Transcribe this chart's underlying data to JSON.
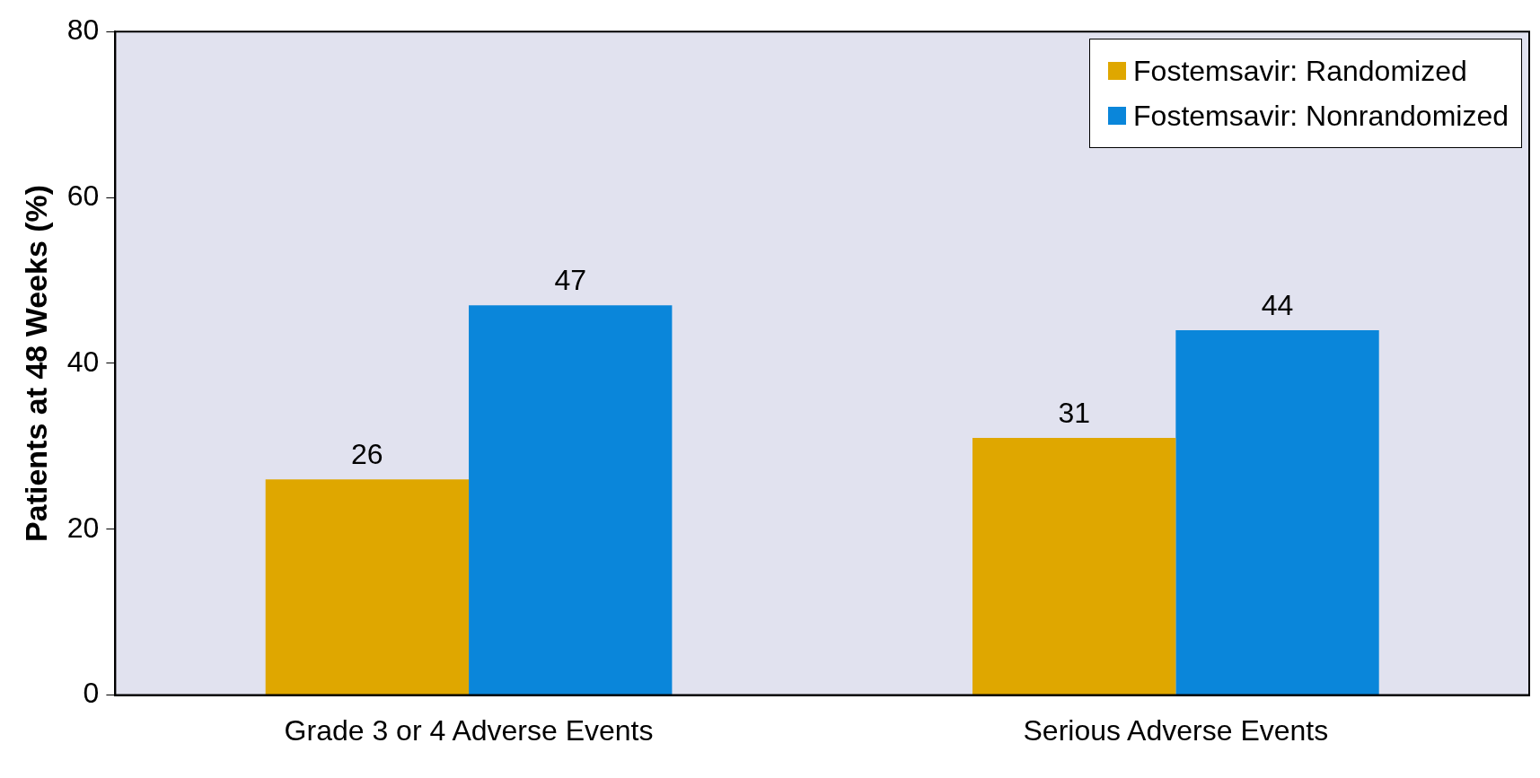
{
  "chart_data": {
    "type": "bar",
    "ylabel": "Patients at 48 Weeks (%)",
    "categories": [
      "Grade 3 or 4 Adverse Events",
      "Serious Adverse Events"
    ],
    "series": [
      {
        "name": "Fostemsavir: Randomized",
        "color": "#dfa700",
        "values": [
          26,
          31
        ]
      },
      {
        "name": "Fostemsavir: Nonrandomized",
        "color": "#0a86da",
        "values": [
          47,
          44
        ]
      }
    ],
    "ylim": [
      0,
      80
    ],
    "yticks": [
      0,
      20,
      40,
      60,
      80
    ],
    "grid": false,
    "legend": "top right",
    "data_labels": true
  }
}
